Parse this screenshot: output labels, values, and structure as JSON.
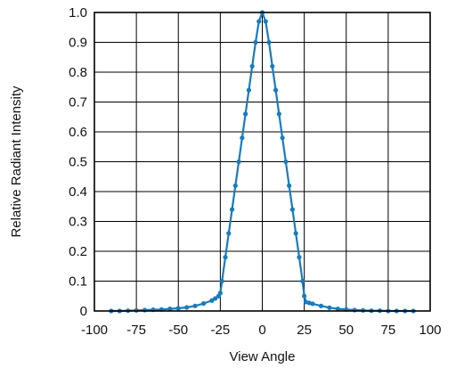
{
  "colors": {
    "series": "#1a7bbd",
    "grid": "#000000",
    "background": "#ffffff"
  },
  "chart_data": {
    "type": "line",
    "title": "",
    "xlabel": "View Angle",
    "ylabel": "Relative Radiant Intensity",
    "xlim": [
      -100,
      100
    ],
    "ylim": [
      0,
      1.0
    ],
    "xticks": [
      -100,
      -75,
      -50,
      -25,
      0,
      25,
      50,
      75,
      100
    ],
    "xtick_labels": [
      "-100",
      "-75",
      "-50",
      "-25",
      "0",
      "25",
      "50",
      "75",
      "100"
    ],
    "yticks": [
      0,
      0.1,
      0.2,
      0.3,
      0.4,
      0.5,
      0.6,
      0.7,
      0.8,
      0.9,
      1.0
    ],
    "ytick_labels": [
      "0",
      "0.1",
      "0.2",
      "0.3",
      "0.4",
      "0.5",
      "0.6",
      "0.7",
      "0.8",
      "0.9",
      "1.0"
    ],
    "grid": true,
    "legend": "none",
    "series": [
      {
        "x": [
          -90,
          -85,
          -80,
          -75,
          -70,
          -65,
          -60,
          -55,
          -50,
          -45,
          -40,
          -35,
          -30,
          -28,
          -26,
          -25,
          -24,
          -22,
          -20,
          -18,
          -16,
          -14,
          -12,
          -10,
          -8,
          -6,
          -4,
          -2,
          0,
          2,
          4,
          6,
          8,
          10,
          12,
          14,
          16,
          18,
          20,
          22,
          24,
          25,
          26,
          28,
          30,
          35,
          40,
          45,
          50,
          55,
          60,
          65,
          70,
          75,
          80,
          85,
          90
        ],
        "y": [
          0.0,
          0.0,
          0.001,
          0.002,
          0.003,
          0.004,
          0.005,
          0.007,
          0.009,
          0.012,
          0.017,
          0.025,
          0.035,
          0.042,
          0.05,
          0.06,
          0.1,
          0.18,
          0.26,
          0.34,
          0.42,
          0.5,
          0.58,
          0.66,
          0.74,
          0.82,
          0.9,
          0.97,
          1.0,
          0.97,
          0.9,
          0.82,
          0.74,
          0.66,
          0.58,
          0.5,
          0.42,
          0.34,
          0.26,
          0.18,
          0.1,
          0.05,
          0.03,
          0.027,
          0.024,
          0.017,
          0.011,
          0.007,
          0.005,
          0.003,
          0.002,
          0.001,
          0.001,
          0.0,
          0.0,
          0.0,
          0.0
        ]
      }
    ]
  }
}
